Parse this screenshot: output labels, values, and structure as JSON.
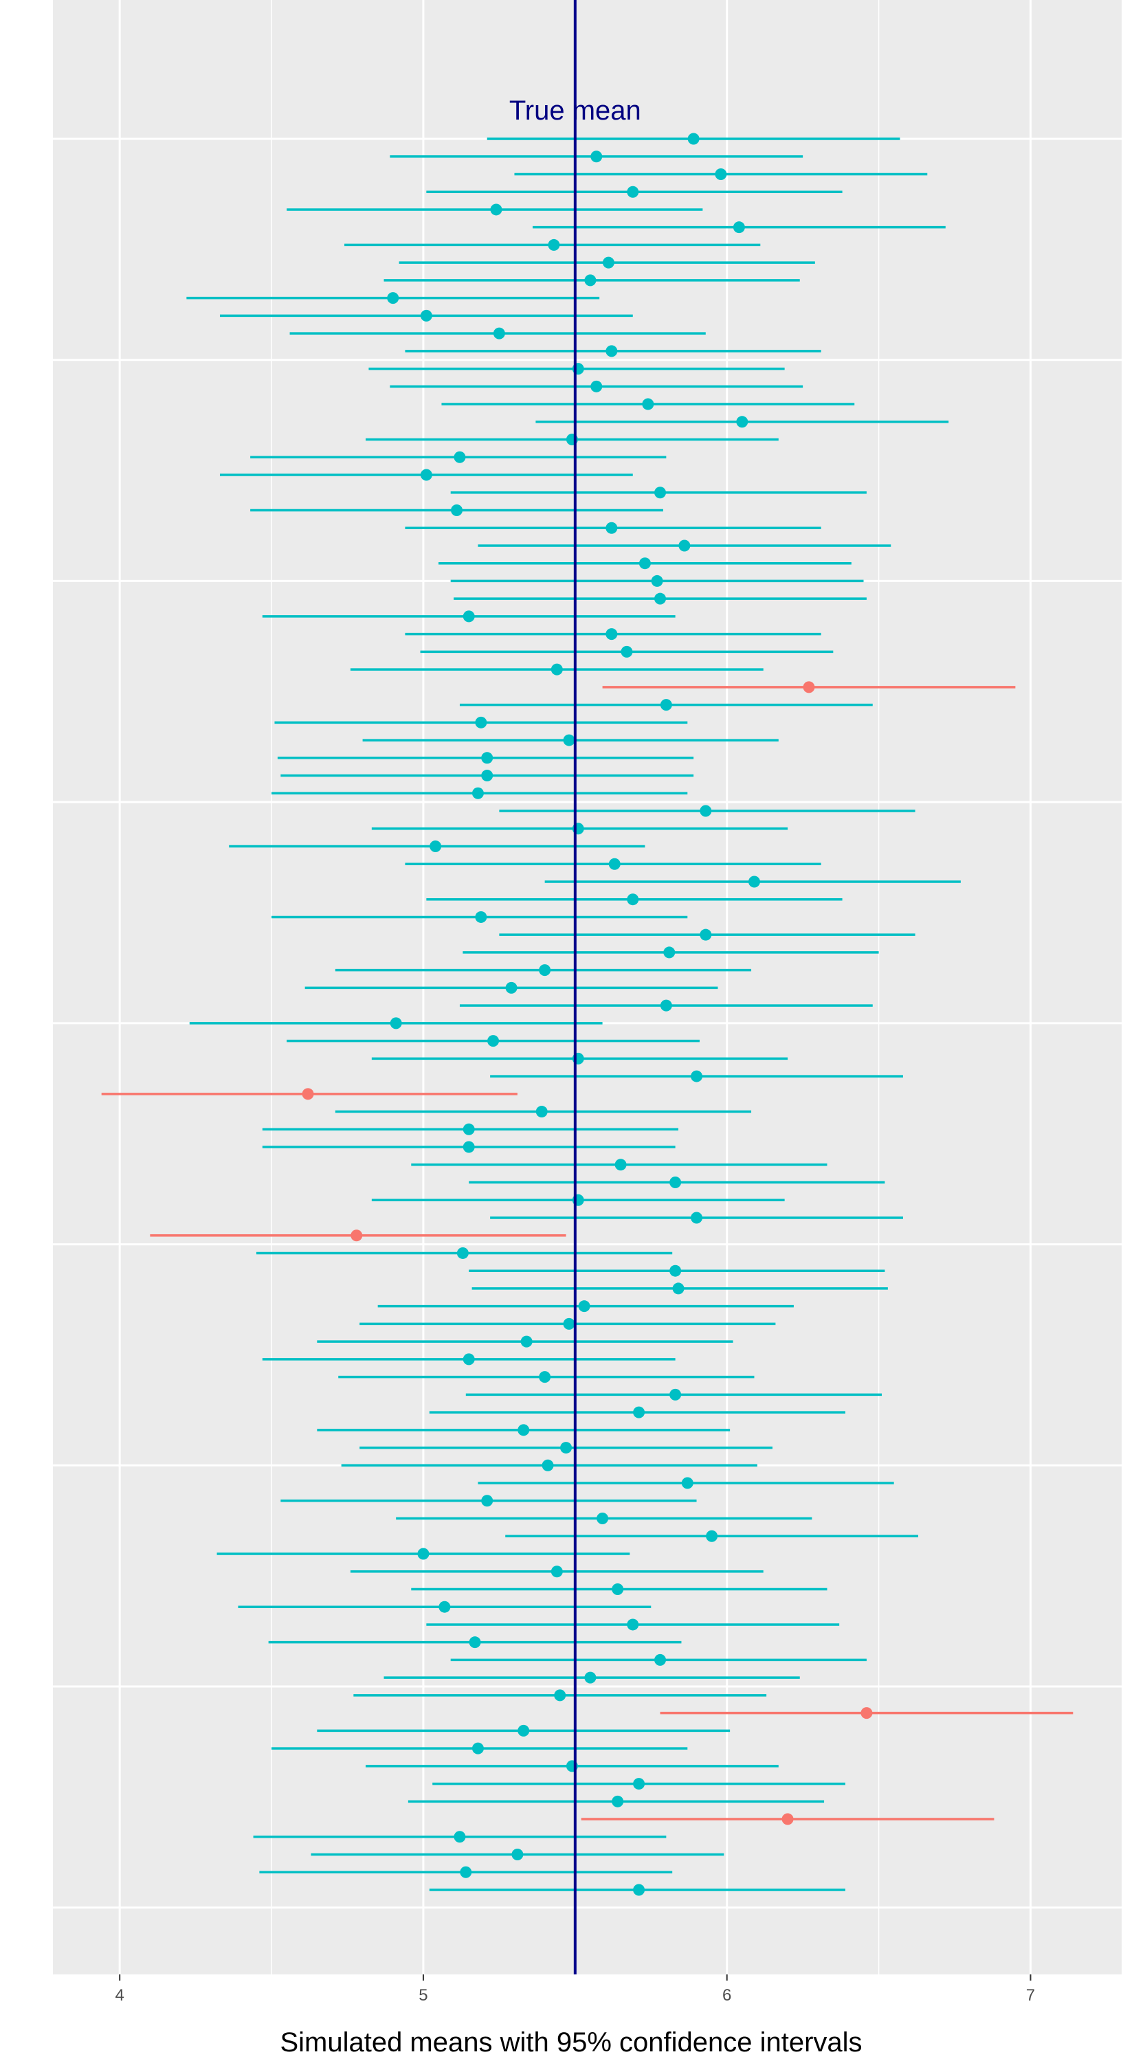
{
  "chart_data": {
    "type": "errorbar",
    "title": "",
    "xlabel": "Simulated means with 95% confidence intervals",
    "ylabel": "",
    "xlim": [
      3.78,
      7.3
    ],
    "x_ticks": [
      "4",
      "5",
      "6",
      "7"
    ],
    "n_intervals": 100,
    "grid": true,
    "legend": "none",
    "reference_line": {
      "label": "True  mean",
      "value": 5.5,
      "color": "#00008B"
    },
    "colors": {
      "covers": "#00BFC4",
      "misses": "#F8766D",
      "panel": "#EBEBEB",
      "grid": "#FFFFFF"
    },
    "intervals": [
      {
        "mean": 5.89,
        "lo": 5.21,
        "hi": 6.57
      },
      {
        "mean": 5.57,
        "lo": 4.89,
        "hi": 6.25
      },
      {
        "mean": 5.98,
        "lo": 5.3,
        "hi": 6.66
      },
      {
        "mean": 5.69,
        "lo": 5.01,
        "hi": 6.38
      },
      {
        "mean": 5.24,
        "lo": 4.55,
        "hi": 5.92
      },
      {
        "mean": 6.04,
        "lo": 5.36,
        "hi": 6.72
      },
      {
        "mean": 5.43,
        "lo": 4.74,
        "hi": 6.11
      },
      {
        "mean": 5.61,
        "lo": 4.92,
        "hi": 6.29
      },
      {
        "mean": 5.55,
        "lo": 4.87,
        "hi": 6.24
      },
      {
        "mean": 4.9,
        "lo": 4.22,
        "hi": 5.58
      },
      {
        "mean": 5.01,
        "lo": 4.33,
        "hi": 5.69
      },
      {
        "mean": 5.25,
        "lo": 4.56,
        "hi": 5.93
      },
      {
        "mean": 5.62,
        "lo": 4.94,
        "hi": 6.31
      },
      {
        "mean": 5.51,
        "lo": 4.82,
        "hi": 6.19
      },
      {
        "mean": 5.57,
        "lo": 4.89,
        "hi": 6.25
      },
      {
        "mean": 5.74,
        "lo": 5.06,
        "hi": 6.42
      },
      {
        "mean": 6.05,
        "lo": 5.37,
        "hi": 6.73
      },
      {
        "mean": 5.49,
        "lo": 4.81,
        "hi": 6.17
      },
      {
        "mean": 5.12,
        "lo": 4.43,
        "hi": 5.8
      },
      {
        "mean": 5.01,
        "lo": 4.33,
        "hi": 5.69
      },
      {
        "mean": 5.78,
        "lo": 5.09,
        "hi": 6.46
      },
      {
        "mean": 5.11,
        "lo": 4.43,
        "hi": 5.79
      },
      {
        "mean": 5.62,
        "lo": 4.94,
        "hi": 6.31
      },
      {
        "mean": 5.86,
        "lo": 5.18,
        "hi": 6.54
      },
      {
        "mean": 5.73,
        "lo": 5.05,
        "hi": 6.41
      },
      {
        "mean": 5.77,
        "lo": 5.09,
        "hi": 6.45
      },
      {
        "mean": 5.78,
        "lo": 5.1,
        "hi": 6.46
      },
      {
        "mean": 5.15,
        "lo": 4.47,
        "hi": 5.83
      },
      {
        "mean": 5.62,
        "lo": 4.94,
        "hi": 6.31
      },
      {
        "mean": 5.67,
        "lo": 4.99,
        "hi": 6.35
      },
      {
        "mean": 5.44,
        "lo": 4.76,
        "hi": 6.12
      },
      {
        "mean": 6.27,
        "lo": 5.59,
        "hi": 6.95
      },
      {
        "mean": 5.8,
        "lo": 5.12,
        "hi": 6.48
      },
      {
        "mean": 5.19,
        "lo": 4.51,
        "hi": 5.87
      },
      {
        "mean": 5.48,
        "lo": 4.8,
        "hi": 6.17
      },
      {
        "mean": 5.21,
        "lo": 4.52,
        "hi": 5.89
      },
      {
        "mean": 5.21,
        "lo": 4.53,
        "hi": 5.89
      },
      {
        "mean": 5.18,
        "lo": 4.5,
        "hi": 5.87
      },
      {
        "mean": 5.93,
        "lo": 5.25,
        "hi": 6.62
      },
      {
        "mean": 5.51,
        "lo": 4.83,
        "hi": 6.2
      },
      {
        "mean": 5.04,
        "lo": 4.36,
        "hi": 5.73
      },
      {
        "mean": 5.63,
        "lo": 4.94,
        "hi": 6.31
      },
      {
        "mean": 6.09,
        "lo": 5.4,
        "hi": 6.77
      },
      {
        "mean": 5.69,
        "lo": 5.01,
        "hi": 6.38
      },
      {
        "mean": 5.19,
        "lo": 4.5,
        "hi": 5.87
      },
      {
        "mean": 5.93,
        "lo": 5.25,
        "hi": 6.62
      },
      {
        "mean": 5.81,
        "lo": 5.13,
        "hi": 6.5
      },
      {
        "mean": 5.4,
        "lo": 4.71,
        "hi": 6.08
      },
      {
        "mean": 5.29,
        "lo": 4.61,
        "hi": 5.97
      },
      {
        "mean": 5.8,
        "lo": 5.12,
        "hi": 6.48
      },
      {
        "mean": 4.91,
        "lo": 4.23,
        "hi": 5.59
      },
      {
        "mean": 5.23,
        "lo": 4.55,
        "hi": 5.91
      },
      {
        "mean": 5.51,
        "lo": 4.83,
        "hi": 6.2
      },
      {
        "mean": 5.9,
        "lo": 5.22,
        "hi": 6.58
      },
      {
        "mean": 4.62,
        "lo": 3.94,
        "hi": 5.31
      },
      {
        "mean": 5.39,
        "lo": 4.71,
        "hi": 6.08
      },
      {
        "mean": 5.15,
        "lo": 4.47,
        "hi": 5.84
      },
      {
        "mean": 5.15,
        "lo": 4.47,
        "hi": 5.83
      },
      {
        "mean": 5.65,
        "lo": 4.96,
        "hi": 6.33
      },
      {
        "mean": 5.83,
        "lo": 5.15,
        "hi": 6.52
      },
      {
        "mean": 5.51,
        "lo": 4.83,
        "hi": 6.19
      },
      {
        "mean": 5.9,
        "lo": 5.22,
        "hi": 6.58
      },
      {
        "mean": 4.78,
        "lo": 4.1,
        "hi": 5.47
      },
      {
        "mean": 5.13,
        "lo": 4.45,
        "hi": 5.82
      },
      {
        "mean": 5.83,
        "lo": 5.15,
        "hi": 6.52
      },
      {
        "mean": 5.84,
        "lo": 5.16,
        "hi": 6.53
      },
      {
        "mean": 5.53,
        "lo": 4.85,
        "hi": 6.22
      },
      {
        "mean": 5.48,
        "lo": 4.79,
        "hi": 6.16
      },
      {
        "mean": 5.34,
        "lo": 4.65,
        "hi": 6.02
      },
      {
        "mean": 5.15,
        "lo": 4.47,
        "hi": 5.83
      },
      {
        "mean": 5.4,
        "lo": 4.72,
        "hi": 6.09
      },
      {
        "mean": 5.83,
        "lo": 5.14,
        "hi": 6.51
      },
      {
        "mean": 5.71,
        "lo": 5.02,
        "hi": 6.39
      },
      {
        "mean": 5.33,
        "lo": 4.65,
        "hi": 6.01
      },
      {
        "mean": 5.47,
        "lo": 4.79,
        "hi": 6.15
      },
      {
        "mean": 5.41,
        "lo": 4.73,
        "hi": 6.1
      },
      {
        "mean": 5.87,
        "lo": 5.18,
        "hi": 6.55
      },
      {
        "mean": 5.21,
        "lo": 4.53,
        "hi": 5.9
      },
      {
        "mean": 5.59,
        "lo": 4.91,
        "hi": 6.28
      },
      {
        "mean": 5.95,
        "lo": 5.27,
        "hi": 6.63
      },
      {
        "mean": 5.0,
        "lo": 4.32,
        "hi": 5.68
      },
      {
        "mean": 5.44,
        "lo": 4.76,
        "hi": 6.12
      },
      {
        "mean": 5.64,
        "lo": 4.96,
        "hi": 6.33
      },
      {
        "mean": 5.07,
        "lo": 4.39,
        "hi": 5.75
      },
      {
        "mean": 5.69,
        "lo": 5.01,
        "hi": 6.37
      },
      {
        "mean": 5.17,
        "lo": 4.49,
        "hi": 5.85
      },
      {
        "mean": 5.78,
        "lo": 5.09,
        "hi": 6.46
      },
      {
        "mean": 5.55,
        "lo": 4.87,
        "hi": 6.24
      },
      {
        "mean": 5.45,
        "lo": 4.77,
        "hi": 6.13
      },
      {
        "mean": 6.46,
        "lo": 5.78,
        "hi": 7.14
      },
      {
        "mean": 5.33,
        "lo": 4.65,
        "hi": 6.01
      },
      {
        "mean": 5.18,
        "lo": 4.5,
        "hi": 5.87
      },
      {
        "mean": 5.49,
        "lo": 4.81,
        "hi": 6.17
      },
      {
        "mean": 5.71,
        "lo": 5.03,
        "hi": 6.39
      },
      {
        "mean": 5.64,
        "lo": 4.95,
        "hi": 6.32
      },
      {
        "mean": 6.2,
        "lo": 5.52,
        "hi": 6.88
      },
      {
        "mean": 5.12,
        "lo": 4.44,
        "hi": 5.8
      },
      {
        "mean": 5.31,
        "lo": 4.63,
        "hi": 5.99
      },
      {
        "mean": 5.14,
        "lo": 4.46,
        "hi": 5.82
      },
      {
        "mean": 5.71,
        "lo": 5.02,
        "hi": 6.39
      }
    ]
  }
}
